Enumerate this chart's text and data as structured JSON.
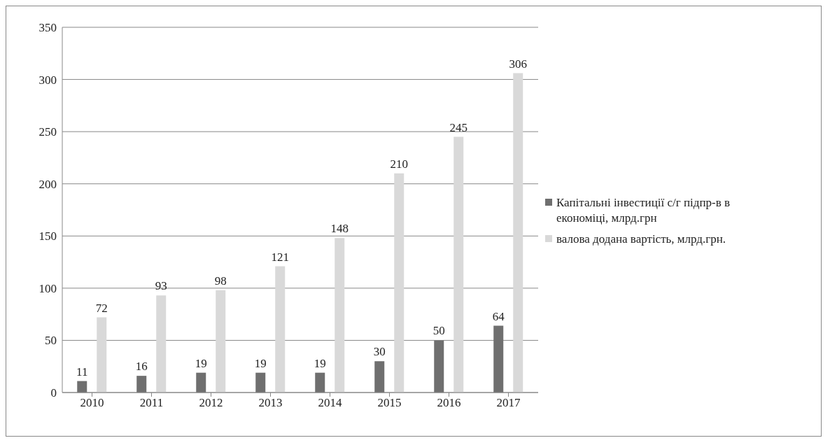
{
  "chart_data": {
    "type": "bar",
    "categories": [
      "2010",
      "2011",
      "2012",
      "2013",
      "2014",
      "2015",
      "2016",
      "2017"
    ],
    "series": [
      {
        "name": "Капітальні інвестиції с/г підпр-в в економіці, млрд.грн",
        "color": "#6f6f6f",
        "values": [
          11,
          16,
          19,
          19,
          19,
          30,
          50,
          64
        ]
      },
      {
        "name": "валова додана вартість, млрд.грн.",
        "color": "#d9d9d9",
        "values": [
          72,
          93,
          98,
          121,
          148,
          210,
          245,
          306
        ]
      }
    ],
    "ylim": [
      0,
      350
    ],
    "yticks": [
      0,
      50,
      100,
      150,
      200,
      250,
      300,
      350
    ],
    "grid": "y",
    "legend": "right",
    "data_labels": true
  }
}
